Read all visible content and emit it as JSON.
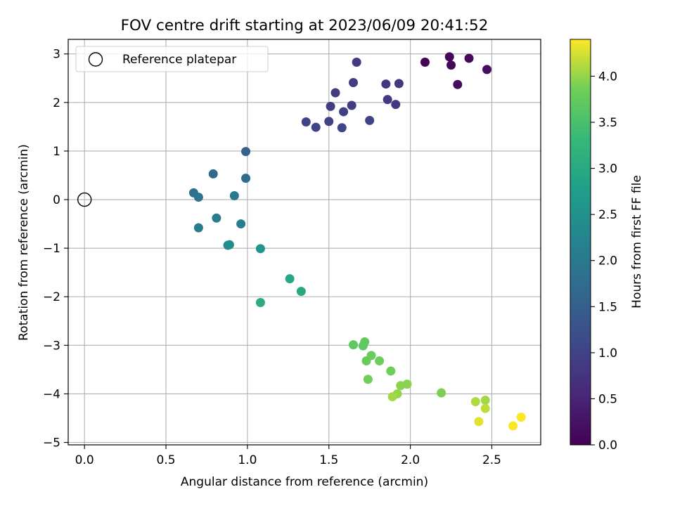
{
  "chart_data": {
    "type": "scatter",
    "title": "FOV centre drift starting at 2023/06/09 20:41:52",
    "xlabel": "Angular distance from reference (arcmin)",
    "ylabel": "Rotation from reference (arcmin)",
    "xlim": [
      -0.1,
      2.8
    ],
    "ylim": [
      -5.05,
      3.3
    ],
    "xticks": [
      0.0,
      0.5,
      1.0,
      1.5,
      2.0,
      2.5
    ],
    "xtick_labels": [
      "0.0",
      "0.5",
      "1.0",
      "1.5",
      "2.0",
      "2.5"
    ],
    "yticks": [
      3,
      2,
      1,
      0,
      -1,
      -2,
      -3,
      -4,
      -5
    ],
    "ytick_labels": [
      "3",
      "2",
      "1",
      "0",
      "−1",
      "−2",
      "−3",
      "−4",
      "−5"
    ],
    "grid": true,
    "legend": {
      "placement": "upper-left",
      "entries": [
        "Reference platepar"
      ]
    },
    "reference_point": {
      "x": 0.0,
      "y": 0.0
    },
    "colorbar": {
      "label": "Hours from first FF file",
      "range": [
        0.0,
        4.4
      ],
      "ticks": [
        0.0,
        0.5,
        1.0,
        1.5,
        2.0,
        2.5,
        3.0,
        3.5,
        4.0
      ],
      "tick_labels": [
        "0.0",
        "0.5",
        "1.0",
        "1.5",
        "2.0",
        "2.5",
        "3.0",
        "3.5",
        "4.0"
      ],
      "colormap": "viridis"
    },
    "points": [
      {
        "x": 2.09,
        "y": 2.83,
        "t": 0.05
      },
      {
        "x": 2.24,
        "y": 2.94,
        "t": 0.08
      },
      {
        "x": 2.25,
        "y": 2.77,
        "t": 0.1
      },
      {
        "x": 2.36,
        "y": 2.91,
        "t": 0.12
      },
      {
        "x": 2.29,
        "y": 2.37,
        "t": 0.15
      },
      {
        "x": 2.47,
        "y": 2.68,
        "t": 0.18
      },
      {
        "x": 1.67,
        "y": 2.83,
        "t": 0.85
      },
      {
        "x": 1.65,
        "y": 2.41,
        "t": 0.88
      },
      {
        "x": 1.54,
        "y": 2.2,
        "t": 0.9
      },
      {
        "x": 1.85,
        "y": 2.38,
        "t": 0.82
      },
      {
        "x": 1.93,
        "y": 2.39,
        "t": 0.8
      },
      {
        "x": 1.51,
        "y": 1.92,
        "t": 0.92
      },
      {
        "x": 1.64,
        "y": 1.94,
        "t": 0.9
      },
      {
        "x": 1.86,
        "y": 2.06,
        "t": 0.85
      },
      {
        "x": 1.91,
        "y": 1.96,
        "t": 0.83
      },
      {
        "x": 1.59,
        "y": 1.81,
        "t": 0.95
      },
      {
        "x": 1.36,
        "y": 1.6,
        "t": 1.0
      },
      {
        "x": 1.42,
        "y": 1.49,
        "t": 1.02
      },
      {
        "x": 1.5,
        "y": 1.61,
        "t": 1.0
      },
      {
        "x": 1.58,
        "y": 1.48,
        "t": 1.05
      },
      {
        "x": 1.75,
        "y": 1.63,
        "t": 1.0
      },
      {
        "x": 0.99,
        "y": 0.99,
        "t": 1.55
      },
      {
        "x": 0.79,
        "y": 0.53,
        "t": 1.65
      },
      {
        "x": 0.99,
        "y": 0.44,
        "t": 1.7
      },
      {
        "x": 0.67,
        "y": 0.14,
        "t": 1.85
      },
      {
        "x": 0.7,
        "y": 0.05,
        "t": 1.95
      },
      {
        "x": 0.92,
        "y": 0.08,
        "t": 2.0
      },
      {
        "x": 0.7,
        "y": -0.58,
        "t": 2.05
      },
      {
        "x": 0.81,
        "y": -0.38,
        "t": 2.05
      },
      {
        "x": 0.96,
        "y": -0.5,
        "t": 2.1
      },
      {
        "x": 0.88,
        "y": -0.94,
        "t": 2.35
      },
      {
        "x": 0.89,
        "y": -0.93,
        "t": 2.4
      },
      {
        "x": 1.08,
        "y": -1.01,
        "t": 2.55
      },
      {
        "x": 1.26,
        "y": -1.63,
        "t": 2.95
      },
      {
        "x": 1.33,
        "y": -1.89,
        "t": 3.0
      },
      {
        "x": 1.08,
        "y": -2.12,
        "t": 3.05
      },
      {
        "x": 1.65,
        "y": -2.99,
        "t": 3.7
      },
      {
        "x": 1.72,
        "y": -2.93,
        "t": 3.72
      },
      {
        "x": 1.71,
        "y": -3.01,
        "t": 3.7
      },
      {
        "x": 1.76,
        "y": -3.21,
        "t": 3.8
      },
      {
        "x": 1.73,
        "y": -3.32,
        "t": 3.78
      },
      {
        "x": 1.81,
        "y": -3.32,
        "t": 3.82
      },
      {
        "x": 1.74,
        "y": -3.7,
        "t": 3.85
      },
      {
        "x": 1.88,
        "y": -3.53,
        "t": 3.85
      },
      {
        "x": 1.94,
        "y": -3.83,
        "t": 3.95
      },
      {
        "x": 1.98,
        "y": -3.8,
        "t": 3.95
      },
      {
        "x": 1.92,
        "y": -4.0,
        "t": 4.0
      },
      {
        "x": 1.89,
        "y": -4.06,
        "t": 4.05
      },
      {
        "x": 2.19,
        "y": -3.98,
        "t": 3.9
      },
      {
        "x": 2.4,
        "y": -4.16,
        "t": 4.1
      },
      {
        "x": 2.46,
        "y": -4.13,
        "t": 4.05
      },
      {
        "x": 2.46,
        "y": -4.3,
        "t": 4.15
      },
      {
        "x": 2.42,
        "y": -4.57,
        "t": 4.3
      },
      {
        "x": 2.63,
        "y": -4.66,
        "t": 4.38
      },
      {
        "x": 2.68,
        "y": -4.48,
        "t": 4.4
      }
    ]
  }
}
